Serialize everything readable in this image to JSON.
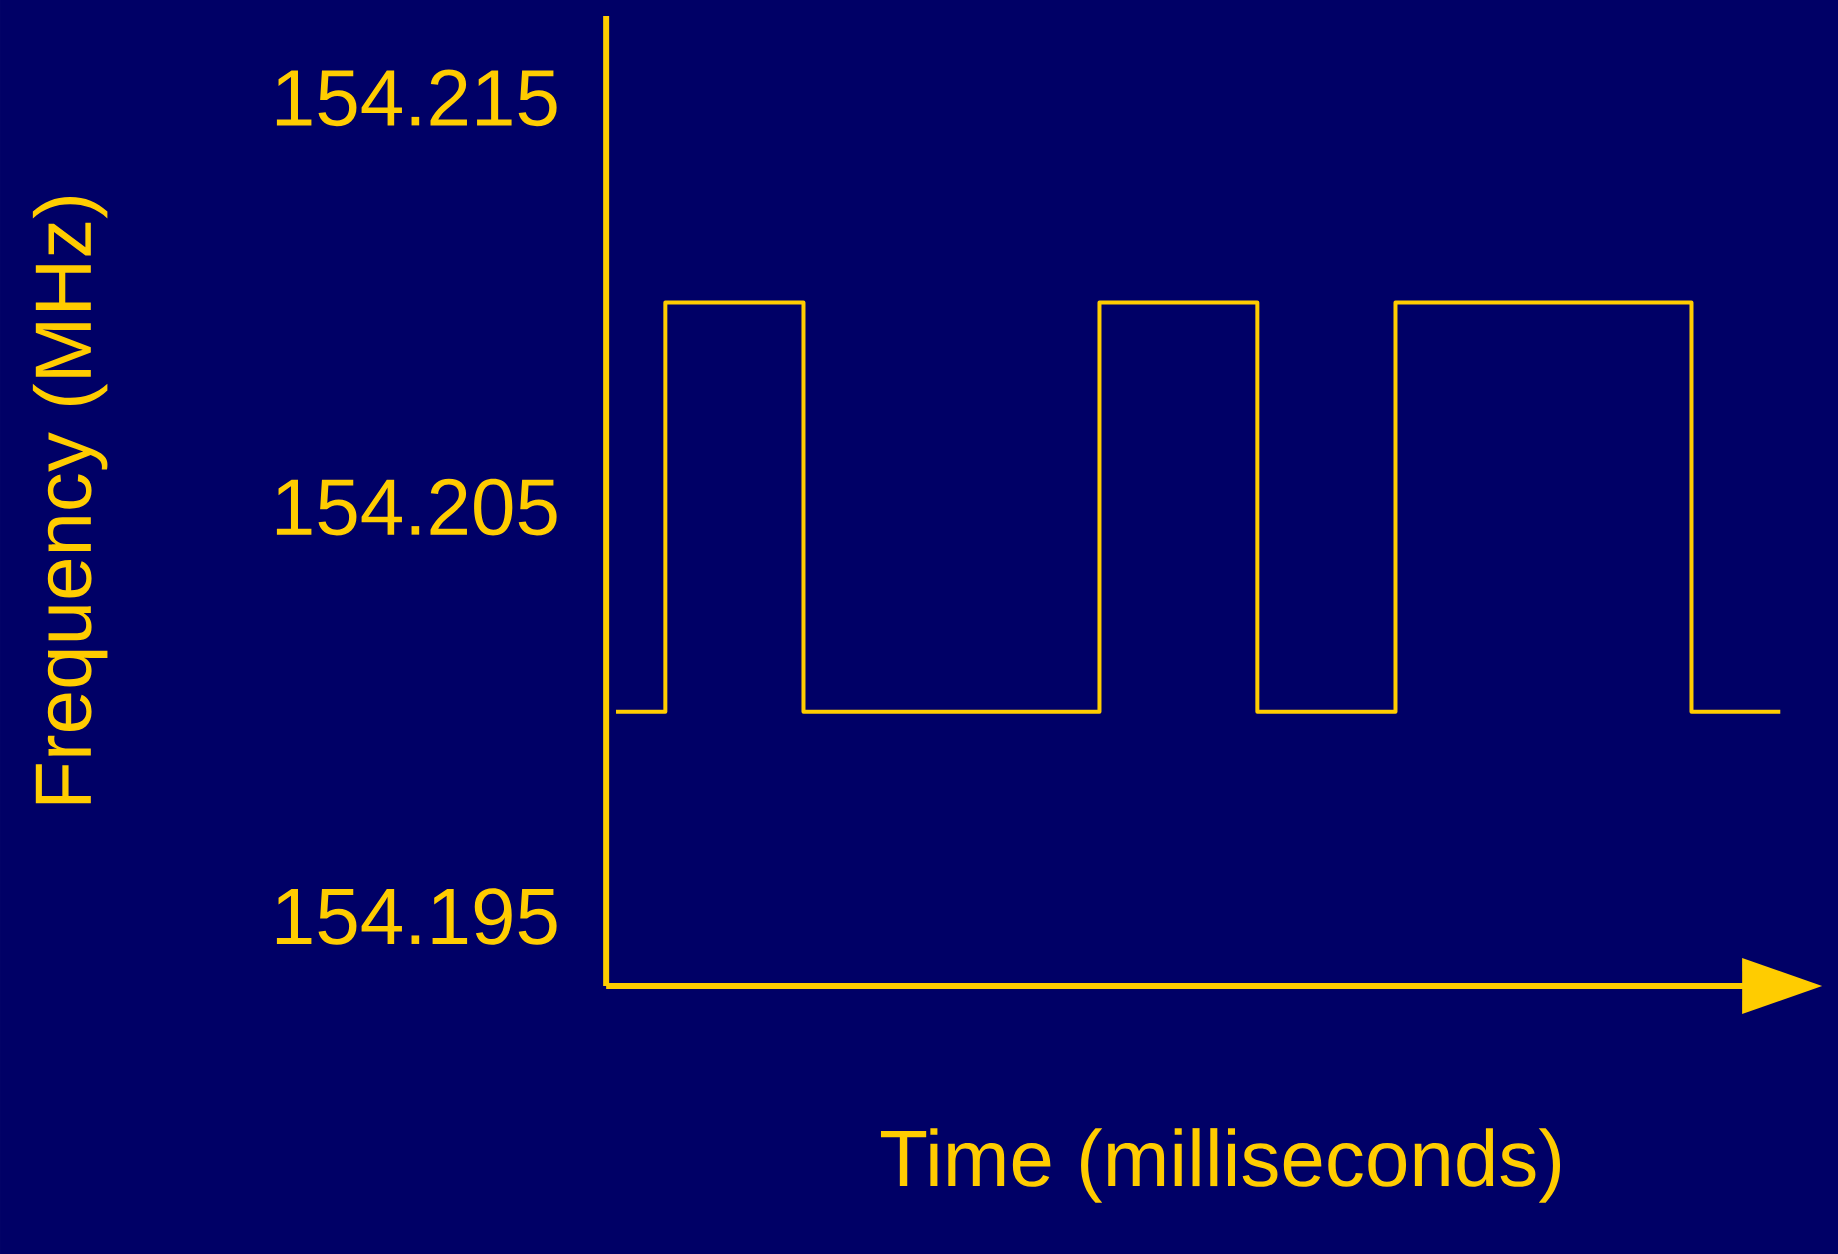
{
  "chart_data": {
    "type": "step",
    "xlabel": "Time (milliseconds)",
    "ylabel": "Frequency (MHz)",
    "categories": [
      null,
      null,
      null,
      null,
      null,
      null,
      null,
      null,
      null,
      null,
      null,
      null,
      null,
      null,
      null,
      null,
      null,
      null,
      null,
      null,
      null,
      null,
      null,
      null,
      null,
      null,
      null,
      null,
      null,
      null,
      null,
      null,
      null,
      null,
      null,
      null,
      null,
      null,
      null,
      null,
      null,
      null,
      null,
      null,
      null,
      null,
      null,
      null,
      null,
      null,
      null,
      null,
      null,
      null,
      null,
      null,
      null,
      null,
      null,
      null
    ],
    "values": [
      154.2,
      154.2,
      154.2,
      154.21,
      154.21,
      154.21,
      154.21,
      154.21,
      154.21,
      154.21,
      154.2,
      154.2,
      154.2,
      154.2,
      154.2,
      154.2,
      154.2,
      154.2,
      154.2,
      154.2,
      154.2,
      154.2,
      154.2,
      154.2,
      154.2,
      154.21,
      154.21,
      154.21,
      154.21,
      154.21,
      154.21,
      154.21,
      154.21,
      154.2,
      154.2,
      154.2,
      154.2,
      154.2,
      154.2,
      154.2,
      154.21,
      154.21,
      154.21,
      154.21,
      154.21,
      154.21,
      154.21,
      154.21,
      154.21,
      154.21,
      154.21,
      154.21,
      154.21,
      154.21,
      154.21,
      154.2,
      154.2,
      154.2,
      154.2,
      154.2
    ],
    "color": "#ffcc00",
    "ylim": [
      154.1933,
      154.217
    ],
    "yticks": [
      154.195,
      154.205,
      154.215
    ]
  }
}
